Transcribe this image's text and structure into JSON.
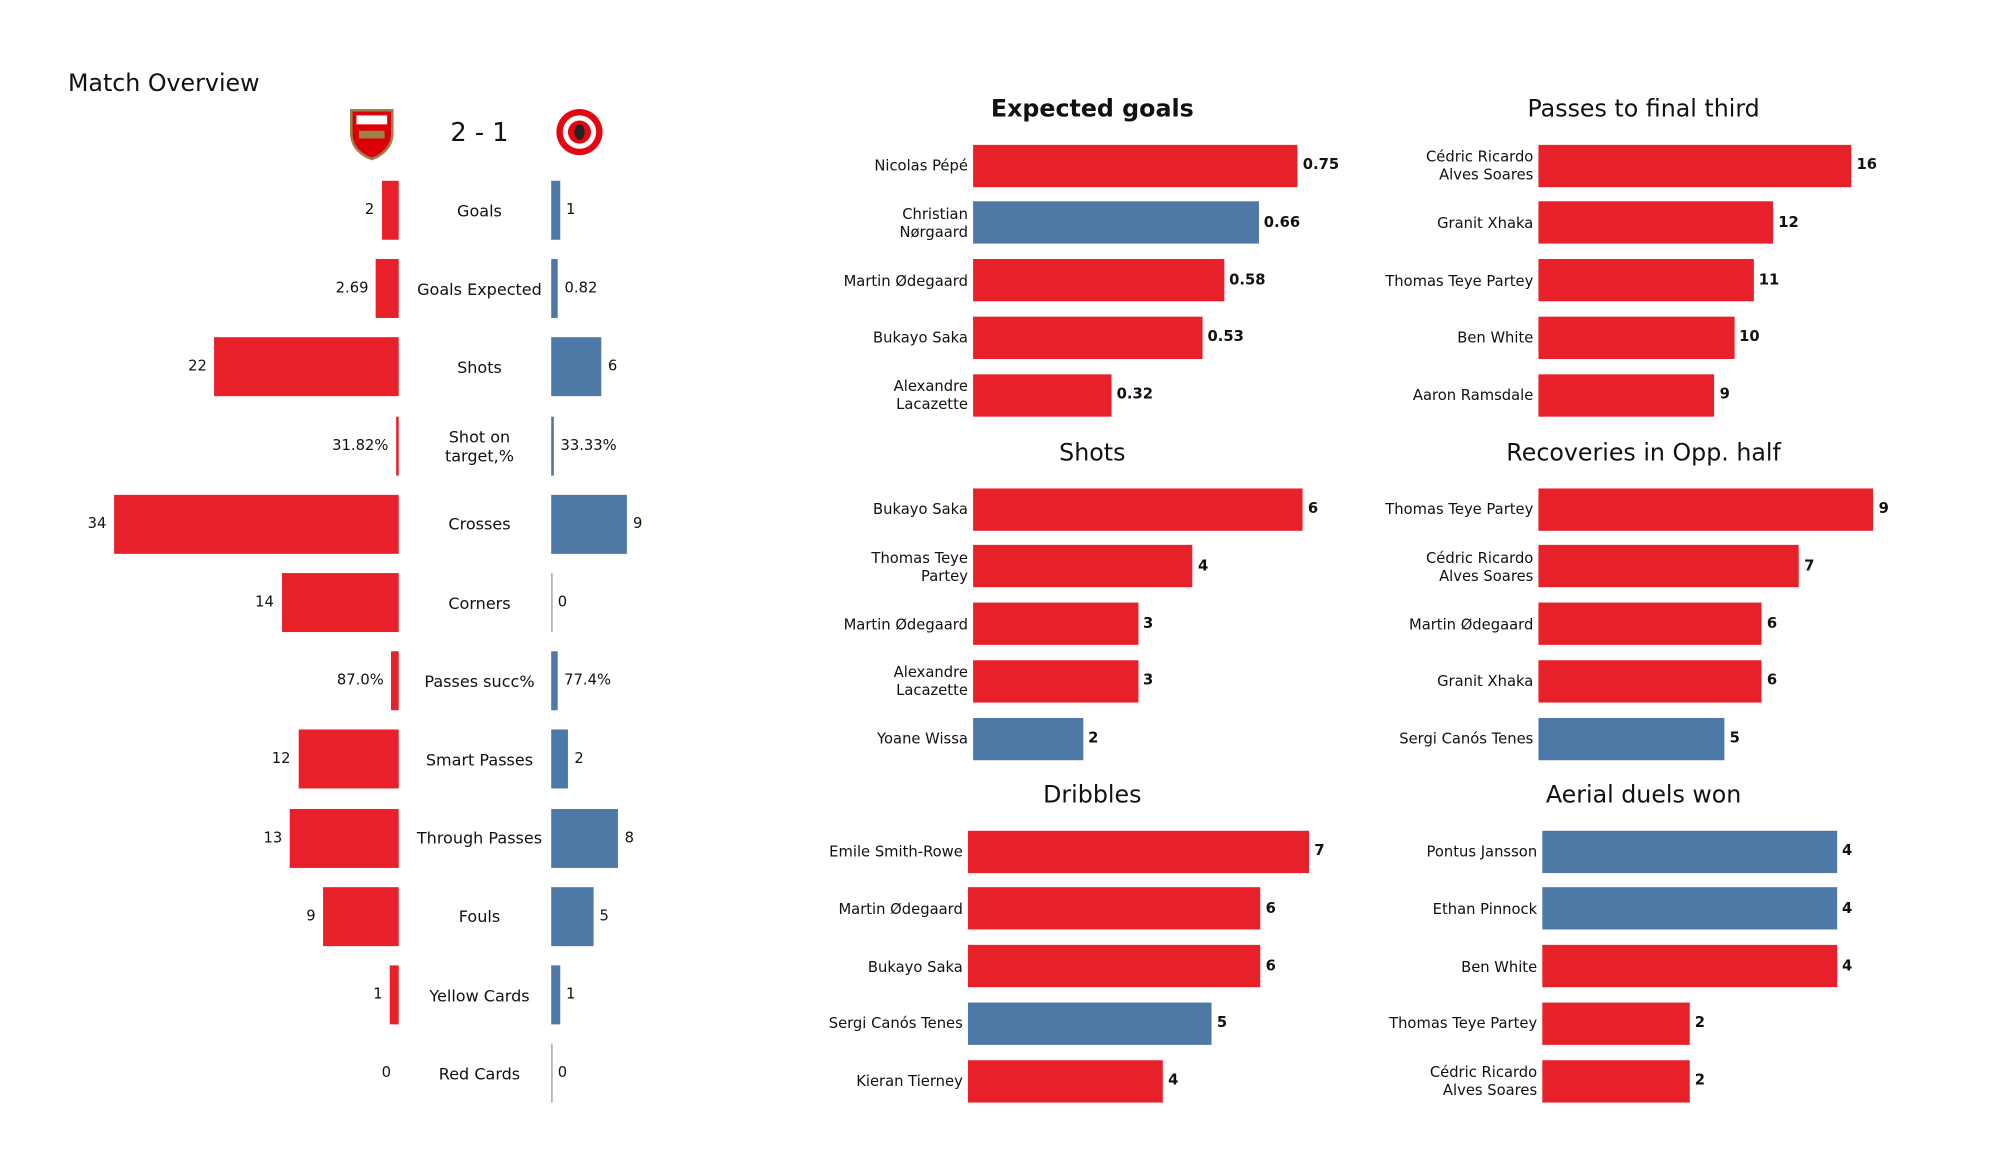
{
  "chart_data": [
    {
      "type": "diverging-bar",
      "title": "Match Overview",
      "score": "2 - 1",
      "categories": [
        "Goals",
        "Goals Expected",
        "Shots",
        "Shot on target,%",
        "Crosses",
        "Corners",
        "Passes succ%",
        "Smart Passes",
        "Through Passes",
        "Fouls",
        "Yellow Cards",
        "Red Cards"
      ],
      "series": [
        {
          "color": "#e8202a",
          "values": [
            2,
            2.69,
            22,
            31.82,
            34,
            14,
            87.0,
            12,
            13,
            9,
            1,
            0
          ],
          "value_labels": [
            "2",
            "2.69",
            "22",
            "31.82%",
            "34",
            "14",
            "87.0%",
            "12",
            "13",
            "9",
            "1",
            "0"
          ]
        },
        {
          "color": "#4e79a7",
          "values": [
            1,
            0.82,
            6,
            33.33,
            9,
            0,
            77.4,
            2,
            8,
            5,
            1,
            0
          ],
          "value_labels": [
            "1",
            "0.82",
            "6",
            "33.33%",
            "9",
            "0",
            "77.4%",
            "2",
            "8",
            "5",
            "1",
            "0"
          ]
        }
      ]
    },
    {
      "type": "hbar",
      "title": "Expected goals",
      "categories": [
        "Nicolas Pépé",
        "Christian Nørgaard",
        "Martin Ødegaard",
        "Bukayo Saka",
        "Alexandre Lacazette"
      ],
      "values": [
        0.75,
        0.66,
        0.58,
        0.53,
        0.32
      ],
      "colors": [
        "#e8202a",
        "#4e79a7",
        "#e8202a",
        "#e8202a",
        "#e8202a"
      ],
      "xlim": [
        0,
        0.8
      ]
    },
    {
      "type": "hbar",
      "title": "Passes to final third",
      "categories": [
        "Cédric Ricardo Alves Soares",
        "Granit Xhaka",
        "Thomas Teye Partey",
        "Ben White",
        "Aaron Ramsdale"
      ],
      "values": [
        16,
        12,
        11,
        10,
        9
      ],
      "colors": [
        "#e8202a",
        "#e8202a",
        "#e8202a",
        "#e8202a",
        "#e8202a"
      ],
      "xlim": [
        0,
        17.7
      ]
    },
    {
      "type": "hbar",
      "title": "Shots",
      "categories": [
        "Bukayo Saka",
        "Thomas Teye Partey",
        "Martin Ødegaard",
        "Alexandre Lacazette",
        "Yoane Wissa"
      ],
      "values": [
        6,
        4,
        3,
        3,
        2
      ],
      "colors": [
        "#e8202a",
        "#e8202a",
        "#e8202a",
        "#e8202a",
        "#4e79a7"
      ],
      "xlim": [
        0,
        6.3
      ]
    },
    {
      "type": "hbar",
      "title": "Recoveries in Opp. half",
      "categories": [
        "Thomas Teye Partey",
        "Cédric Ricardo Alves Soares",
        "Martin Ødegaard",
        "Granit Xhaka",
        "Sergi Canós Tenes"
      ],
      "values": [
        9,
        7,
        6,
        6,
        5
      ],
      "colors": [
        "#e8202a",
        "#e8202a",
        "#e8202a",
        "#e8202a",
        "#4e79a7"
      ],
      "xlim": [
        0,
        9.3
      ]
    },
    {
      "type": "hbar",
      "title": "Dribbles",
      "categories": [
        "Emile Smith-Rowe",
        "Martin Ødegaard",
        "Bukayo Saka",
        "Sergi Canós Tenes",
        "Kieran Tierney"
      ],
      "values": [
        7,
        6,
        6,
        5,
        4
      ],
      "colors": [
        "#e8202a",
        "#e8202a",
        "#e8202a",
        "#4e79a7",
        "#e8202a"
      ],
      "xlim": [
        0,
        7.1
      ]
    },
    {
      "type": "hbar",
      "title": "Aerial duels won",
      "categories": [
        "Pontus Jansson",
        "Ethan Pinnock",
        "Ben White",
        "Thomas Teye Partey",
        "Cédric Ricardo Alves Soares"
      ],
      "values": [
        4,
        4,
        4,
        2,
        2
      ],
      "colors": [
        "#4e79a7",
        "#4e79a7",
        "#e8202a",
        "#e8202a",
        "#e8202a"
      ],
      "xlim": [
        0,
        4.7
      ]
    }
  ]
}
